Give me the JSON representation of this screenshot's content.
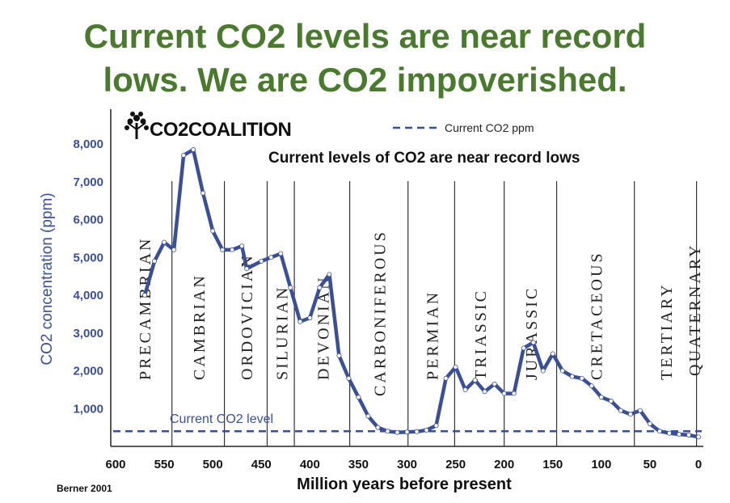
{
  "headline": {
    "line1": "Current CO2 levels are near record",
    "line2": "lows. We are CO2 impoverished."
  },
  "logo": {
    "text": "CO2COALITION",
    "icon": "tree-icon"
  },
  "source": "Berner 2001",
  "colors": {
    "headline": "#4a7a2e",
    "series": "#3a4f9a",
    "axis_label": "#3a4fa0"
  },
  "chart_data": {
    "type": "line",
    "title": "Current levels of CO2 are near record lows",
    "xlabel": "Million years before present",
    "ylabel": "CO2 concentration (ppm)",
    "xlim": [
      600,
      0
    ],
    "ylim": [
      0,
      8600
    ],
    "x_ticks": [
      "600",
      "550",
      "500",
      "450",
      "400",
      "350",
      "300",
      "250",
      "200",
      "150",
      "100",
      "50",
      "0"
    ],
    "y_ticks": [
      "1,000",
      "2,000",
      "3,000",
      "4,000",
      "5,000",
      "6,000",
      "7,000",
      "8,000"
    ],
    "legend": {
      "label": "Current CO2 ppm",
      "position": "top-right"
    },
    "reference_line": {
      "label": "Current CO2 level",
      "value": 400
    },
    "periods": [
      {
        "name": "PRECAMBRIAN",
        "start": 600,
        "end": 542
      },
      {
        "name": "CAMBRIAN",
        "start": 542,
        "end": 488
      },
      {
        "name": "ORDOVICIAN",
        "start": 488,
        "end": 444
      },
      {
        "name": "SILURIAN",
        "start": 444,
        "end": 416
      },
      {
        "name": "DEVONIAN",
        "start": 416,
        "end": 359
      },
      {
        "name": "CARBONIFEROUS",
        "start": 359,
        "end": 299
      },
      {
        "name": "PERMIAN",
        "start": 299,
        "end": 251
      },
      {
        "name": "TRIASSIC",
        "start": 251,
        "end": 200
      },
      {
        "name": "JURASSIC",
        "start": 200,
        "end": 146
      },
      {
        "name": "CRETACEOUS",
        "start": 146,
        "end": 66
      },
      {
        "name": "TERTIARY",
        "start": 66,
        "end": 2
      },
      {
        "name": "QUATERNARY",
        "start": 2,
        "end": 0
      }
    ],
    "series": [
      {
        "x": [
          570,
          560,
          550,
          540,
          530,
          520,
          510,
          500,
          490,
          480,
          470,
          465,
          450,
          440,
          430,
          420,
          410,
          400,
          390,
          380,
          370,
          360,
          350,
          340,
          330,
          320,
          310,
          300,
          290,
          280,
          270,
          260,
          250,
          240,
          230,
          220,
          210,
          200,
          190,
          180,
          170,
          160,
          150,
          140,
          130,
          120,
          110,
          100,
          90,
          80,
          70,
          60,
          50,
          40,
          30,
          20,
          10,
          0
        ],
        "y": [
          4000,
          4900,
          5400,
          5200,
          7700,
          7850,
          6700,
          5700,
          5200,
          5200,
          5300,
          4700,
          4900,
          5000,
          5100,
          4200,
          3300,
          3400,
          4200,
          4550,
          2400,
          1800,
          1300,
          800,
          500,
          400,
          370,
          380,
          390,
          430,
          550,
          1800,
          2100,
          1500,
          1750,
          1450,
          1650,
          1400,
          1400,
          2600,
          2750,
          2000,
          2450,
          2000,
          1850,
          1800,
          1600,
          1300,
          1200,
          950,
          850,
          950,
          600,
          400,
          350,
          320,
          300,
          250
        ]
      }
    ]
  }
}
